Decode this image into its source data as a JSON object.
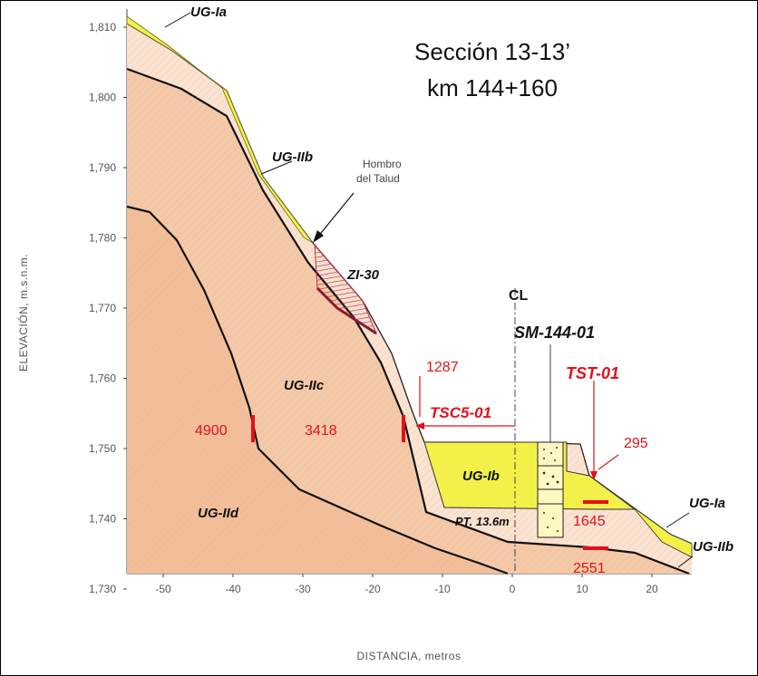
{
  "title": {
    "line1": "Sección 13-13’",
    "line2": "km 144+160"
  },
  "axes": {
    "ylabel": "ELEVACIÓN,  m.s.n.m.",
    "xlabel": "DISTANCIA,  metros",
    "y_ticks": [
      "1,810",
      "1,800",
      "1,790",
      "1,780",
      "1,770",
      "1,760",
      "1,750",
      "1,740",
      "1,730"
    ],
    "x_ticks": [
      "-50",
      "-40",
      "-30",
      "-20",
      "-10",
      "0",
      "10",
      "20"
    ]
  },
  "units": {
    "ug_ia_top": "UG-Ia",
    "ug_iib_top": "UG-IIb",
    "zi30": "ZI-30",
    "ug_iic": "UG-IIc",
    "ug_iid": "UG-IId",
    "ug_ib": "UG-Ib",
    "ug_ia_right": "UG-Ia",
    "ug_iib_right": "UG-IIb"
  },
  "annotations": {
    "hombro_line1": "Hombro",
    "hombro_line2": "del Talud",
    "centerline": "CL",
    "sm": "SM-144-01",
    "pt": "PT. 13.6m",
    "tsc": "TSC5-01",
    "tst": "TST-01"
  },
  "velocities": {
    "v4900": "4900",
    "v3418": "3418",
    "v1287": "1287",
    "v295": "295",
    "v1645": "1645",
    "v2551": "2551"
  },
  "colors": {
    "bedrock": "#f4c9a8",
    "weathered": "#fbe3d2",
    "fill_yellow": "#f3f04a",
    "zi30": "#c0304a",
    "red": "#e3101a"
  }
}
